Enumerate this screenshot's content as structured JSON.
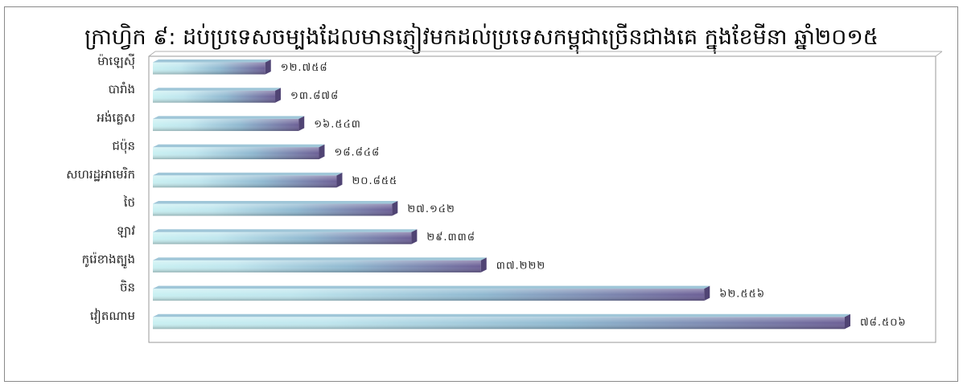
{
  "chart_data": {
    "type": "bar",
    "orientation": "horizontal",
    "title": "ក្រាហ្វិក ៩: ដប់ប្រទេសចម្បងដែលមានភ្ញៀវមកដល់ប្រទេសកម្ពុជាច្រើនជាងគេ ក្នុងខែមីនា ឆ្នាំ២០១៥",
    "categories": [
      "ម៉ាឡេស៊ី",
      "បារាំង",
      "អង់គ្លេស",
      "ជប៉ុន",
      "សហរដ្ឋអាមេរិក",
      "ថៃ",
      "ឡាវ",
      "កូរ៉េខាងត្បូង",
      "ចិន",
      "វៀតណាម"
    ],
    "values": [
      12758,
      13878,
      16543,
      18848,
      20855,
      27142,
      29338,
      37222,
      62556,
      78506
    ],
    "value_labels": [
      "១២.៧៥៨",
      "១៣.៨៧៨",
      "១៦.៥៤៣",
      "១៨.៨៤៨",
      "២០.៨៥៥",
      "២៧.១៤២",
      "២៩.៣៣៨",
      "៣៧.២២២",
      "៦២.៥៥៦",
      "៧៨.៥០៦"
    ],
    "xlim": [
      0,
      80000
    ],
    "grid": false,
    "legend": "none"
  },
  "colors": {
    "bar_light": "#c9f0f2",
    "bar_mid": "#8fb8d0",
    "bar_dark": "#6c5f96",
    "bar_end": "#504474",
    "plot_border": "#9a9a9a"
  }
}
